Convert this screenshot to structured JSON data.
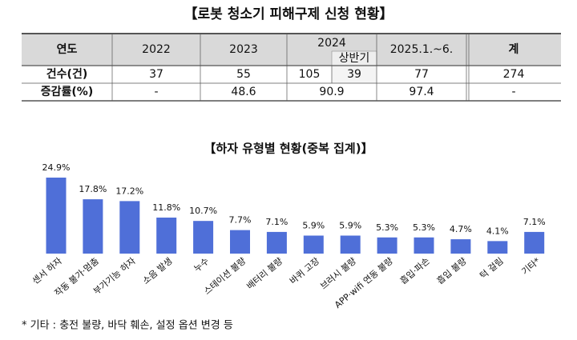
{
  "table": {
    "title": "【로봇 청소기 피해구제 신청 현황】",
    "header": [
      "연도",
      "2022",
      "2023",
      "2024",
      "2025.1.~6.",
      "계"
    ],
    "header_sub": "상반기",
    "rows": [
      [
        "건수(건)",
        "37",
        "55",
        "105",
        "39",
        "77",
        "274"
      ],
      [
        "증감률(%)",
        "-",
        "48.6",
        "90.9",
        "97.4",
        "-"
      ]
    ]
  },
  "chart_data": {
    "type": "bar",
    "title": "【하자 유형별 현황(중복 집계)】",
    "categories": [
      "센서 하자",
      "작동 불가·멈춤",
      "부가기능 하자",
      "소음 발생",
      "누수",
      "스테이션 불량",
      "배터리 불량",
      "바퀴 고장",
      "브러시 불량",
      "APP·wifi 연동 불량",
      "흡입·파손",
      "흡입 불량",
      "턱 걸림",
      "기타*"
    ],
    "values": [
      24.9,
      17.8,
      17.2,
      11.8,
      10.7,
      7.7,
      7.1,
      5.9,
      5.9,
      5.3,
      5.3,
      4.7,
      4.1,
      7.1
    ],
    "value_labels": [
      "24.9%",
      "17.8%",
      "17.2%",
      "11.8%",
      "10.7%",
      "7.7%",
      "7.1%",
      "5.9%",
      "5.9%",
      "5.3%",
      "5.3%",
      "4.7%",
      "4.1%",
      "7.1%"
    ],
    "color": "#4f6fd8"
  },
  "footnote": "* 기타 : 충전 불량, 바닥 훼손, 설정 옵션 변경 등"
}
